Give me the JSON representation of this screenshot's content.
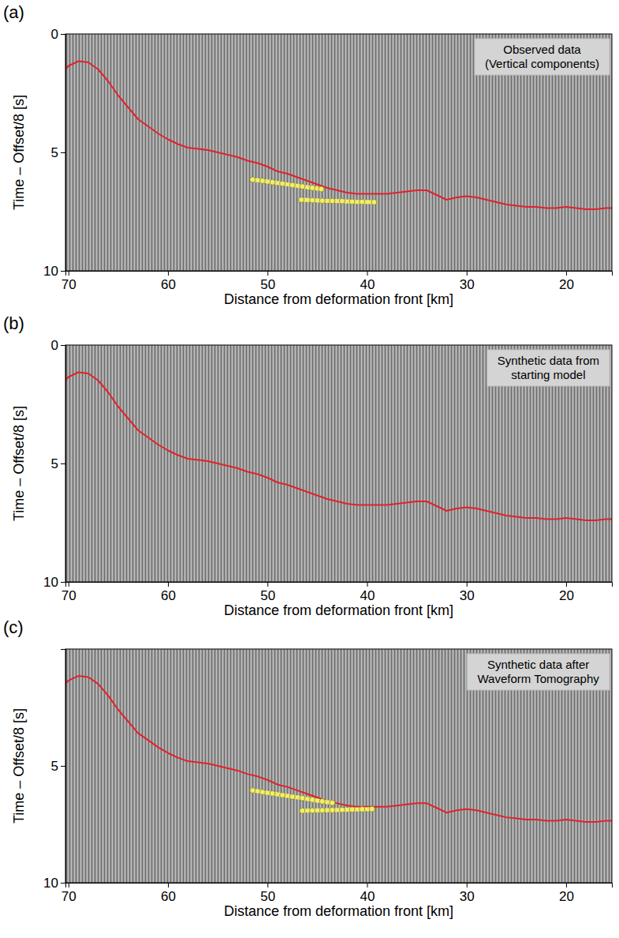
{
  "chart_data": [
    {
      "type": "line",
      "panel": "(a)",
      "title": [
        "Observed data",
        "(Vertical components)"
      ],
      "xlabel": "Distance from deformation front [km]",
      "ylabel": "Time – Offset/8 [s]",
      "xlim": [
        70.3,
        15.4
      ],
      "ylim": [
        0,
        10
      ],
      "xticks": [
        70,
        60,
        50,
        40,
        30,
        20
      ],
      "yticks": [
        0,
        5,
        10
      ],
      "series": [
        {
          "color": "#e3212b",
          "line_style": "solid",
          "x": [
            70.3,
            70,
            69,
            68,
            67,
            66,
            65,
            64,
            63,
            62,
            61,
            60,
            59,
            58,
            57,
            56,
            55,
            54,
            53,
            52,
            51,
            50,
            49,
            48,
            47,
            46,
            45,
            44,
            43,
            42,
            41,
            40,
            39,
            38,
            37,
            36,
            35,
            34,
            33,
            32,
            31,
            30,
            29,
            28,
            27,
            26,
            25,
            24,
            23,
            22,
            21,
            20,
            19,
            18,
            17,
            16,
            15.4
          ],
          "values": [
            1.5,
            1.35,
            1.15,
            1.2,
            1.5,
            2.0,
            2.6,
            3.1,
            3.6,
            3.9,
            4.2,
            4.45,
            4.65,
            4.8,
            4.85,
            4.9,
            5.0,
            5.1,
            5.2,
            5.35,
            5.45,
            5.6,
            5.8,
            5.9,
            6.05,
            6.2,
            6.35,
            6.5,
            6.6,
            6.7,
            6.75,
            6.75,
            6.75,
            6.75,
            6.7,
            6.65,
            6.6,
            6.6,
            6.8,
            7.0,
            6.9,
            6.85,
            6.9,
            7.0,
            7.1,
            7.2,
            7.25,
            7.3,
            7.3,
            7.35,
            7.35,
            7.3,
            7.35,
            7.4,
            7.4,
            7.35,
            7.35
          ]
        },
        {
          "color": "#f2ee6a",
          "marker": "circle",
          "x": [
            51.5,
            50.5,
            49.5,
            48.5,
            47.5,
            46.5,
            45.5,
            44.6
          ],
          "values": [
            6.15,
            6.2,
            6.26,
            6.32,
            6.38,
            6.44,
            6.5,
            6.55
          ]
        },
        {
          "color": "#f2ee6a",
          "marker": "circle",
          "x": [
            46.6,
            45.5,
            44.5,
            43.5,
            42.5,
            41.5,
            40.5,
            39.3
          ],
          "values": [
            7.0,
            7.02,
            7.04,
            7.05,
            7.06,
            7.08,
            7.09,
            7.1
          ]
        }
      ]
    },
    {
      "type": "line",
      "panel": "(b)",
      "title": [
        "Synthetic data from",
        "starting model"
      ],
      "xlabel": "Distance from deformation front [km]",
      "ylabel": "Time – Offset/8 [s]",
      "xlim": [
        70.3,
        15.4
      ],
      "ylim": [
        0,
        10
      ],
      "xticks": [
        70,
        60,
        50,
        40,
        30,
        20
      ],
      "yticks": [
        0,
        5,
        10
      ],
      "series": [
        {
          "color": "#e3212b",
          "line_style": "solid",
          "x": [
            70.3,
            70,
            69,
            68,
            67,
            66,
            65,
            64,
            63,
            62,
            61,
            60,
            59,
            58,
            57,
            56,
            55,
            54,
            53,
            52,
            51,
            50,
            49,
            48,
            47,
            46,
            45,
            44,
            43,
            42,
            41,
            40,
            39,
            38,
            37,
            36,
            35,
            34,
            33,
            32,
            31,
            30,
            29,
            28,
            27,
            26,
            25,
            24,
            23,
            22,
            21,
            20,
            19,
            18,
            17,
            16,
            15.4
          ],
          "values": [
            1.5,
            1.35,
            1.15,
            1.2,
            1.5,
            2.0,
            2.6,
            3.1,
            3.6,
            3.9,
            4.2,
            4.45,
            4.65,
            4.8,
            4.85,
            4.9,
            5.0,
            5.1,
            5.2,
            5.35,
            5.45,
            5.6,
            5.8,
            5.9,
            6.05,
            6.2,
            6.35,
            6.5,
            6.6,
            6.7,
            6.75,
            6.75,
            6.75,
            6.75,
            6.7,
            6.65,
            6.6,
            6.6,
            6.8,
            7.0,
            6.9,
            6.85,
            6.9,
            7.0,
            7.1,
            7.2,
            7.25,
            7.3,
            7.3,
            7.35,
            7.35,
            7.3,
            7.35,
            7.4,
            7.4,
            7.35,
            7.35
          ]
        }
      ]
    },
    {
      "type": "line",
      "panel": "(c)",
      "title": [
        "Synthetic data after",
        "Waveform Tomography"
      ],
      "xlabel": "Distance from deformation front [km]",
      "ylabel": "Time – Offset/8 [s]",
      "xlim": [
        70.3,
        15.4
      ],
      "ylim": [
        0,
        10
      ],
      "xticks": [
        70,
        60,
        50,
        40,
        30,
        20
      ],
      "yticks": [
        5,
        10
      ],
      "series": [
        {
          "color": "#e3212b",
          "line_style": "solid",
          "x": [
            70.3,
            70,
            69,
            68,
            67,
            66,
            65,
            64,
            63,
            62,
            61,
            60,
            59,
            58,
            57,
            56,
            55,
            54,
            53,
            52,
            51,
            50,
            49,
            48,
            47,
            46,
            45,
            44,
            43,
            42,
            41,
            40,
            39,
            38,
            37,
            36,
            35,
            34,
            33,
            32,
            31,
            30,
            29,
            28,
            27,
            26,
            25,
            24,
            23,
            22,
            21,
            20,
            19,
            18,
            17,
            16,
            15.4
          ],
          "values": [
            1.5,
            1.35,
            1.15,
            1.2,
            1.5,
            2.0,
            2.6,
            3.1,
            3.6,
            3.9,
            4.2,
            4.45,
            4.65,
            4.8,
            4.85,
            4.9,
            5.0,
            5.1,
            5.2,
            5.35,
            5.45,
            5.6,
            5.8,
            5.9,
            6.05,
            6.2,
            6.35,
            6.5,
            6.6,
            6.7,
            6.75,
            6.75,
            6.75,
            6.75,
            6.7,
            6.65,
            6.6,
            6.6,
            6.8,
            7.0,
            6.9,
            6.85,
            6.9,
            7.0,
            7.1,
            7.2,
            7.25,
            7.3,
            7.3,
            7.35,
            7.35,
            7.3,
            7.35,
            7.4,
            7.4,
            7.35,
            7.35
          ]
        },
        {
          "color": "#f2ee6a",
          "marker": "circle",
          "x": [
            51.5,
            50.5,
            49.5,
            48.5,
            47.5,
            46.5,
            45.5,
            44.5,
            43.5
          ],
          "values": [
            6.05,
            6.12,
            6.18,
            6.25,
            6.32,
            6.38,
            6.45,
            6.52,
            6.58
          ]
        },
        {
          "color": "#f2ee6a",
          "marker": "circle",
          "x": [
            46.5,
            45.5,
            44.5,
            43.5,
            42.5,
            41.5,
            40.5,
            39.5
          ],
          "values": [
            6.92,
            6.91,
            6.9,
            6.89,
            6.88,
            6.87,
            6.86,
            6.85
          ]
        }
      ]
    }
  ]
}
